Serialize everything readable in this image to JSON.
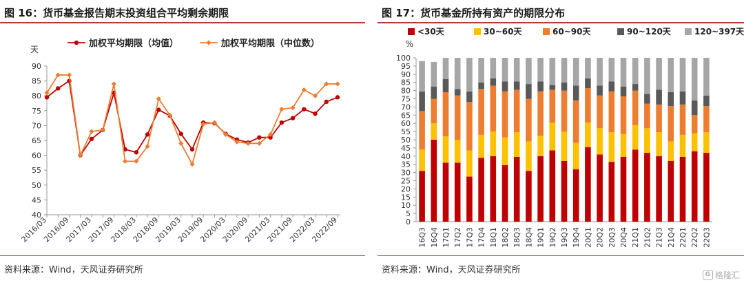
{
  "left_panel": {
    "title": "图 16：货币基金报告期末投资组合平均剩余期限",
    "source": "资料来源：Wind，天风证券研究所"
  },
  "right_panel": {
    "title": "图 17：货币基金所持有资产的期限分布",
    "source": "资料来源：Wind，天风证券研究所"
  },
  "watermark": {
    "logo_glyph": "G",
    "text": "格隆汇"
  },
  "chart_data": [
    {
      "type": "line",
      "ylabel": "天",
      "ylim": [
        40,
        90
      ],
      "yticks": [
        40,
        45,
        50,
        55,
        60,
        65,
        70,
        75,
        80,
        85,
        90
      ],
      "x": [
        "2016/03",
        "2016/06",
        "2016/09",
        "2016/12",
        "2017/03",
        "2017/06",
        "2017/09",
        "2017/12",
        "2018/03",
        "2018/06",
        "2018/09",
        "2018/12",
        "2019/03",
        "2019/06",
        "2019/09",
        "2019/12",
        "2020/03",
        "2020/06",
        "2020/09",
        "2020/12",
        "2021/03",
        "2021/06",
        "2021/09",
        "2021/12",
        "2022/03",
        "2022/06",
        "2022/09"
      ],
      "xtick_labels": [
        "2016/03",
        "2016/09",
        "2017/03",
        "2017/09",
        "2018/03",
        "2018/09",
        "2019/03",
        "2019/09",
        "2020/03",
        "2020/09",
        "2021/03",
        "2021/09",
        "2022/03",
        "2022/09"
      ],
      "legend_position": "top",
      "grid": false,
      "series": [
        {
          "name": "加权平均期限（均值）",
          "color": "#c00000",
          "marker": "circle",
          "values": [
            79.5,
            82.5,
            85,
            60,
            65.5,
            68.5,
            81,
            62,
            61,
            67,
            75.3,
            73.3,
            67.2,
            62,
            71,
            70.8,
            67.2,
            65.3,
            64.3,
            66,
            66,
            71,
            72.5,
            75.5,
            74,
            78,
            79.5
          ]
        },
        {
          "name": "加权平均期限（中位数）",
          "color": "#ed7d31",
          "marker": "diamond",
          "values": [
            81,
            87,
            87,
            60,
            68,
            68.5,
            84,
            58,
            58,
            63,
            79,
            73.5,
            64,
            57,
            70.5,
            71,
            67,
            64.5,
            64,
            64,
            67,
            75.5,
            76,
            82,
            80,
            84,
            84
          ]
        }
      ]
    },
    {
      "type": "bar",
      "stacked": true,
      "ylabel": "%",
      "ylim": [
        0,
        100
      ],
      "yticks": [
        0,
        5,
        10,
        15,
        20,
        25,
        30,
        35,
        40,
        45,
        50,
        55,
        60,
        65,
        70,
        75,
        80,
        85,
        90,
        95,
        100
      ],
      "legend_position": "top",
      "grid": false,
      "categories": [
        "16Q3",
        "16Q4",
        "17Q1",
        "17Q2",
        "17Q3",
        "17Q4",
        "18Q1",
        "18Q2",
        "18Q3",
        "18Q4",
        "19Q1",
        "19Q2",
        "19Q3",
        "19Q4",
        "20Q1",
        "20Q2",
        "20Q3",
        "20Q4",
        "21Q1",
        "21Q2",
        "21Q3",
        "21Q4",
        "22Q1",
        "22Q2",
        "22Q3"
      ],
      "series": [
        {
          "name": "<30天",
          "color": "#c00000",
          "values": [
            31,
            50,
            36,
            36,
            27.5,
            39,
            40,
            34.5,
            39.5,
            31,
            40,
            43.5,
            37,
            32,
            45.5,
            41,
            36.5,
            39.5,
            44,
            42,
            40,
            37,
            39.5,
            43,
            42
          ]
        },
        {
          "name": "30~60天",
          "color": "#ffc000",
          "values": [
            13,
            10,
            16,
            14,
            16,
            14,
            15,
            17,
            15,
            18,
            12.5,
            17,
            18,
            16,
            15,
            16,
            18,
            14,
            15,
            15,
            14.5,
            12,
            13.5,
            11,
            12.5
          ]
        },
        {
          "name": "60~90天",
          "color": "#ed7d31",
          "values": [
            23.5,
            15,
            27,
            27,
            29.5,
            28,
            28,
            28,
            26,
            26,
            27,
            20,
            25,
            26,
            21,
            20,
            25,
            23,
            21,
            15,
            17,
            21.5,
            18.5,
            11,
            16
          ]
        },
        {
          "name": "90~120天",
          "color": "#595959",
          "values": [
            12,
            7.5,
            8,
            4,
            6.5,
            4,
            4.5,
            6,
            5,
            9,
            6,
            3,
            5,
            9,
            6,
            6,
            6,
            6,
            4,
            6,
            9,
            8.5,
            8,
            9,
            6.5
          ]
        },
        {
          "name": "120~397天",
          "color": "#a6a6a6",
          "values": [
            18.5,
            15,
            13,
            19,
            20.5,
            15,
            12.5,
            14.5,
            14.5,
            16,
            14.5,
            16.5,
            15,
            17,
            12.5,
            17,
            14.5,
            17.5,
            16,
            22,
            19.5,
            21,
            20.5,
            26,
            23
          ]
        }
      ]
    }
  ]
}
